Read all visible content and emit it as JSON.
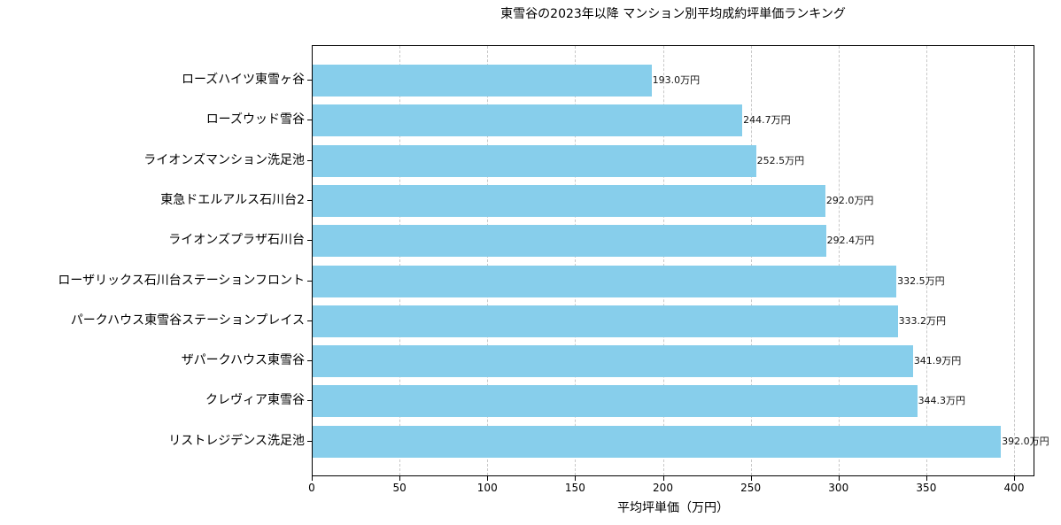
{
  "chart_data": {
    "type": "bar",
    "orientation": "horizontal",
    "title": "東雪谷の2023年以降 マンション別平均成約坪単価ランキング",
    "xlabel": "平均坪単価（万円）",
    "ylabel": "",
    "xlim": [
      0,
      411.6
    ],
    "xticks": [
      0,
      50,
      100,
      150,
      200,
      250,
      300,
      350,
      400
    ],
    "grid": "x dashed",
    "bar_color": "#87ceeb",
    "value_suffix": "万円",
    "categories": [
      "ローズハイツ東雪ヶ谷",
      "ローズウッド雪谷",
      "ライオンズマンション洗足池",
      "東急ドエルアルス石川台2",
      "ライオンズプラザ石川台",
      "ローザリックス石川台ステーションフロント",
      "パークハウス東雪谷ステーションプレイス",
      "ザパークハウス東雪谷",
      "クレヴィア東雪谷",
      "リストレジデンス洗足池"
    ],
    "values": [
      193.0,
      244.7,
      252.5,
      292.0,
      292.4,
      332.5,
      333.2,
      341.9,
      344.3,
      392.0
    ],
    "value_labels": [
      "193.0万円",
      "244.7万円",
      "252.5万円",
      "292.0万円",
      "292.4万円",
      "332.5万円",
      "333.2万円",
      "341.9万円",
      "344.3万円",
      "392.0万円"
    ]
  }
}
